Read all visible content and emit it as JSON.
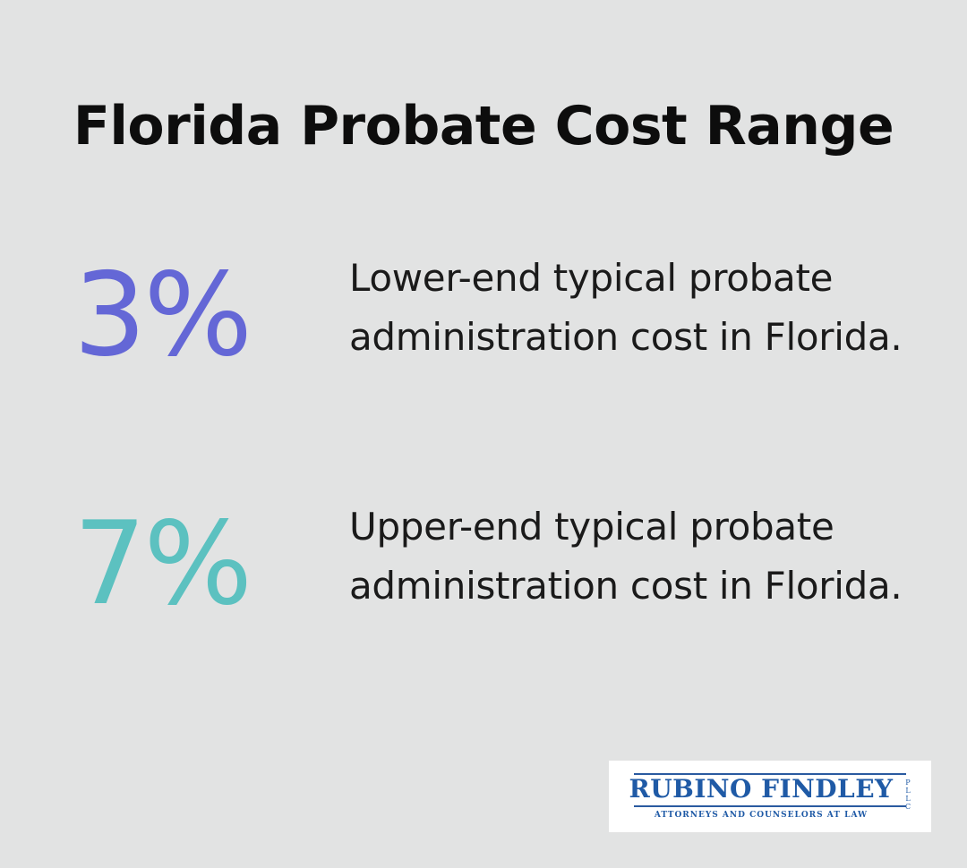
{
  "title": "Florida Probate Cost Range",
  "stats": [
    {
      "value": "3%",
      "description": "Lower-end typical probate administration cost in Florida.",
      "color": "#6467d6"
    },
    {
      "value": "7%",
      "description": "Upper-end typical probate administration cost in Florida.",
      "color": "#5cc1c0"
    }
  ],
  "logo": {
    "name": "RUBINO FINDLEY",
    "suffix": "PLLC",
    "tagline": "ATTORNEYS AND COUNSELORS AT LAW",
    "color": "#1f5aa6"
  },
  "colors": {
    "background": "#e2e3e3",
    "title": "#0d0d0d"
  }
}
